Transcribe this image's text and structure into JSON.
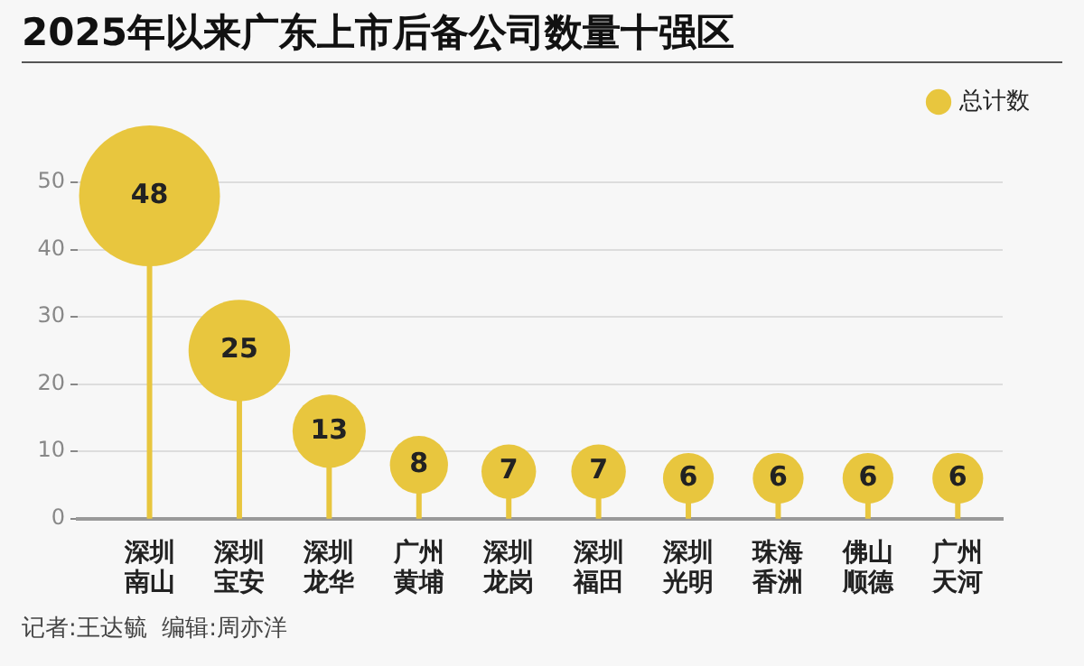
{
  "chart_data": {
    "type": "lollipop",
    "title": "2025年以来广东上市后备公司数量十强区",
    "categories": [
      "深圳南山",
      "深圳宝安",
      "深圳龙华",
      "广州黄埔",
      "深圳龙岗",
      "深圳福田",
      "深圳光明",
      "珠海香洲",
      "佛山顺德",
      "广州天河"
    ],
    "series": [
      {
        "name": "总计数",
        "color": "#e8c63e",
        "values": [
          48,
          25,
          13,
          8,
          7,
          7,
          6,
          6,
          6,
          6
        ],
        "sizes": [
          1,
          0.52,
          0.27,
          0.17,
          0.15,
          0.15,
          0.13,
          0.13,
          0.13,
          0.13
        ]
      }
    ],
    "ylim": [
      0,
      50
    ],
    "yticks": [
      0,
      10,
      20,
      30,
      40,
      50
    ],
    "grid": "y",
    "legend": "top right",
    "data_labels": true,
    "annotations": [
      "记者:王达毓  编辑:周亦洋"
    ]
  }
}
